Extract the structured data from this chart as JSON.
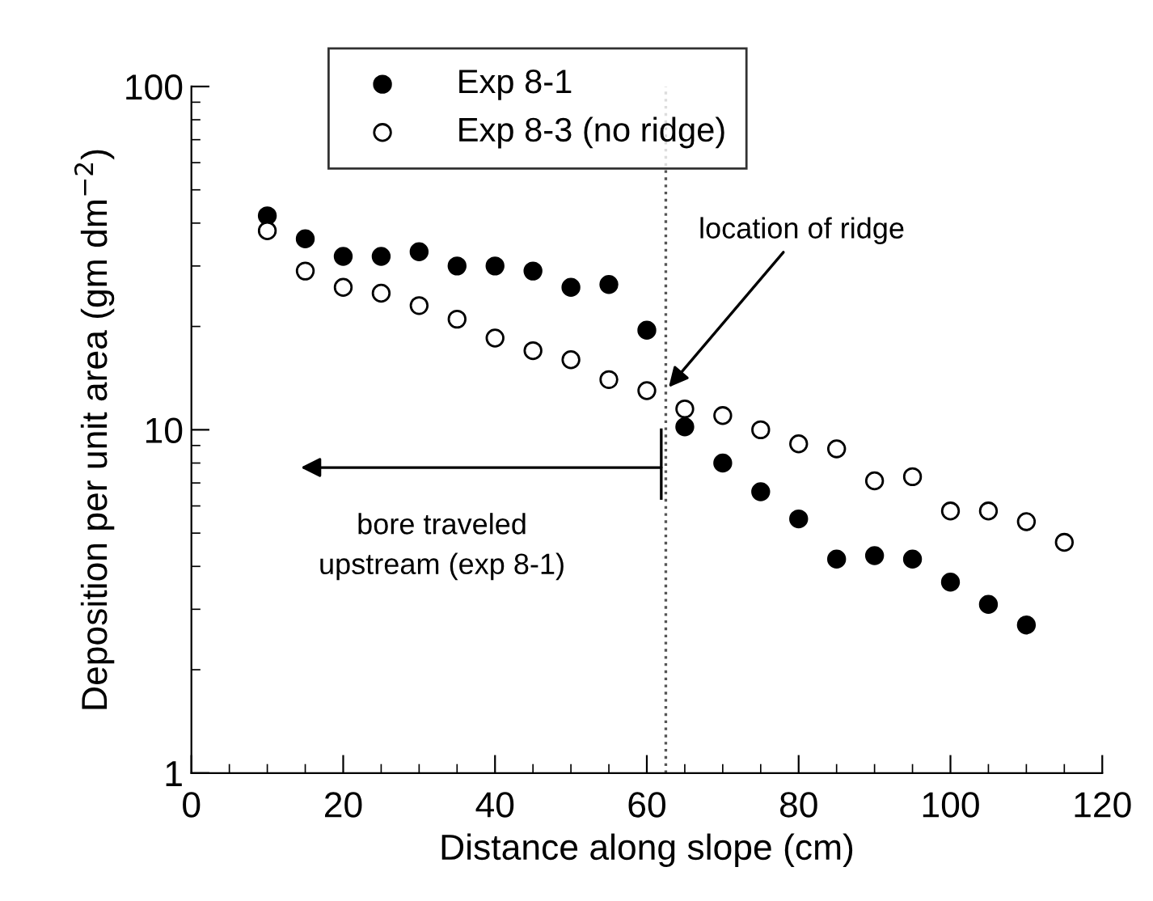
{
  "chart_data": {
    "type": "scatter",
    "xlabel": "Distance along slope (cm)",
    "ylabel": "Deposition per unit area (gm dm$^{−2}$)",
    "log": "y",
    "xlim": [
      0,
      120
    ],
    "xticks": [
      0,
      20,
      40,
      60,
      80,
      100,
      120
    ],
    "ylim": [
      1,
      100
    ],
    "yticks": [
      1,
      10,
      100
    ],
    "grid": false,
    "legend": "top",
    "marker": "circle",
    "series": [
      {
        "name": "Exp 8-1",
        "color": "#000000",
        "x": [
          10,
          15,
          20,
          25,
          30,
          35,
          40,
          45,
          50,
          55,
          60,
          65,
          70,
          75,
          80,
          85,
          90,
          95,
          100,
          105,
          110
        ],
        "values": [
          42,
          36,
          32,
          32,
          33,
          30,
          30,
          29,
          26,
          26.5,
          19.5,
          10.2,
          8.0,
          6.6,
          5.5,
          4.2,
          4.3,
          4.2,
          3.6,
          3.1,
          2.7
        ]
      },
      {
        "name": "Exp 8-3 (no ridge)",
        "color": "#ffffff",
        "x": [
          10,
          15,
          20,
          25,
          30,
          35,
          40,
          45,
          50,
          55,
          60,
          65,
          70,
          75,
          80,
          85,
          90,
          95,
          100,
          105,
          110,
          115
        ],
        "values": [
          38,
          29,
          26,
          25,
          23,
          21,
          18.5,
          17,
          16,
          14,
          13,
          11.5,
          11,
          10,
          9.1,
          8.8,
          7.1,
          7.3,
          5.8,
          5.8,
          5.4,
          4.7
        ]
      }
    ],
    "ref_lines": [
      {
        "axis": "x",
        "value": 62.5,
        "line_style": "dotted",
        "color": "#555555"
      }
    ],
    "annotations": [
      {
        "text": "location of ridge",
        "x": 62.5,
        "y": 13
      },
      "bore traveled\nupstream (exp 8-1)"
    ]
  }
}
